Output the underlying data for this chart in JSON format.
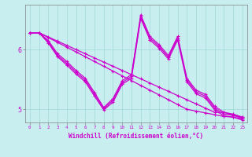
{
  "xlabel": "Windchill (Refroidissement éolien,°C)",
  "bg_color": "#c8eef0",
  "line_color": "#cc00cc",
  "grid_color": "#a0d8d8",
  "spine_color": "#808080",
  "tick_color": "#cc00cc",
  "xlim": [
    -0.5,
    23.5
  ],
  "ylim": [
    4.78,
    6.75
  ],
  "yticks": [
    5.0,
    6.0
  ],
  "xticks": [
    0,
    1,
    2,
    3,
    4,
    5,
    6,
    7,
    8,
    9,
    10,
    11,
    12,
    13,
    14,
    15,
    16,
    17,
    18,
    19,
    20,
    21,
    22,
    23
  ],
  "line_lw": 0.9,
  "marker_size": 3.5,
  "straight1_y": [
    6.28,
    6.28,
    6.21,
    6.14,
    6.07,
    6.0,
    5.93,
    5.86,
    5.79,
    5.72,
    5.65,
    5.58,
    5.51,
    5.44,
    5.37,
    5.3,
    5.23,
    5.16,
    5.09,
    5.02,
    4.95,
    4.95,
    4.9,
    4.87
  ],
  "straight2_y": [
    6.28,
    6.28,
    6.2,
    6.12,
    6.04,
    5.96,
    5.88,
    5.8,
    5.72,
    5.64,
    5.56,
    5.48,
    5.4,
    5.32,
    5.24,
    5.16,
    5.08,
    5.0,
    4.97,
    4.94,
    4.91,
    4.88,
    4.87,
    4.84
  ],
  "wavy1_y": [
    6.28,
    6.28,
    6.15,
    5.93,
    5.8,
    5.65,
    5.52,
    5.28,
    5.03,
    5.18,
    5.48,
    5.58,
    6.58,
    6.22,
    6.08,
    5.9,
    6.22,
    5.52,
    5.32,
    5.25,
    5.05,
    4.95,
    4.92,
    4.87
  ],
  "wavy2_y": [
    6.28,
    6.28,
    6.13,
    5.9,
    5.77,
    5.62,
    5.49,
    5.25,
    5.01,
    5.15,
    5.45,
    5.55,
    6.55,
    6.19,
    6.05,
    5.87,
    6.19,
    5.49,
    5.29,
    5.22,
    5.02,
    4.92,
    4.9,
    4.85
  ],
  "wavy3_y": [
    6.28,
    6.28,
    6.11,
    5.88,
    5.74,
    5.59,
    5.46,
    5.22,
    4.99,
    5.12,
    5.42,
    5.52,
    6.52,
    6.16,
    6.02,
    5.84,
    6.16,
    5.46,
    5.26,
    5.19,
    4.99,
    4.89,
    4.87,
    4.82
  ]
}
